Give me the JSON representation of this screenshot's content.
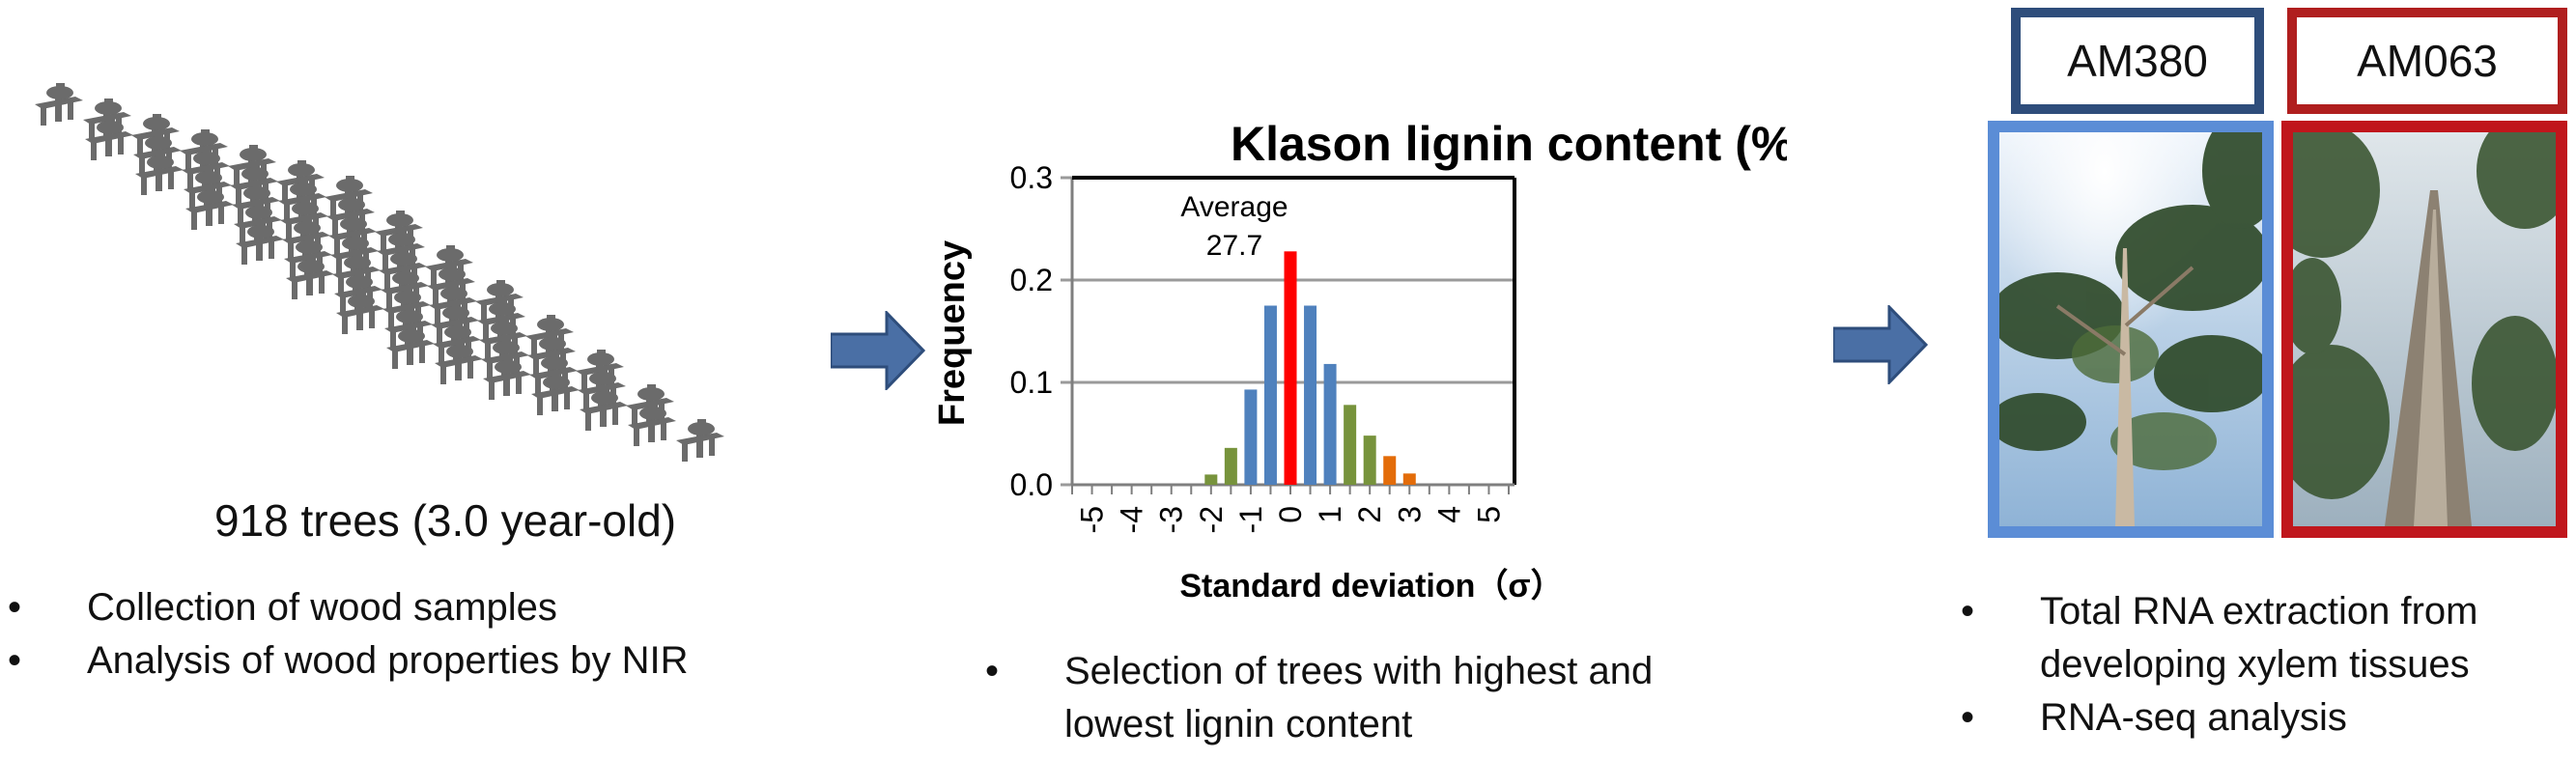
{
  "left": {
    "caption": "918 trees (3.0 year-old)",
    "bullets": [
      "Collection of wood samples",
      "Analysis of wood properties by NIR"
    ]
  },
  "middle": {
    "bullets_line1": "Selection of trees with highest and",
    "bullets_line2": "lowest  lignin content"
  },
  "right": {
    "labels": [
      "AM380",
      "AM063"
    ],
    "bullets_line1": "Total RNA extraction from",
    "bullets_line2": "developing xylem tissues",
    "bullets_2": "RNA-seq analysis"
  },
  "colors": {
    "arrow": "#4a6fa5",
    "box_blue": "#2e4d7b",
    "box_red": "#b01e1e",
    "photo_border_blue": "#5b8dd6",
    "photo_border_red": "#c0161c",
    "tree_gray": "#6b6b6b"
  },
  "chart_data": {
    "type": "bar",
    "title": "Klason lignin content (%)",
    "xlabel": "Standard deviation（σ）",
    "ylabel": "Frequency",
    "ylim": [
      0,
      0.3
    ],
    "yticks": [
      "0.0",
      "0.1",
      "0.2",
      "0.3"
    ],
    "xticks": [
      "-5",
      "-4",
      "-3",
      "-2",
      "-1",
      "0",
      "1",
      "2",
      "3",
      "4",
      "5"
    ],
    "annotation": [
      "Average",
      "27.7"
    ],
    "grid": true,
    "bars": [
      {
        "x": -2.0,
        "value": 0.01,
        "color": "#77933c"
      },
      {
        "x": -1.5,
        "value": 0.036,
        "color": "#77933c"
      },
      {
        "x": -1.0,
        "value": 0.093,
        "color": "#4f81bd"
      },
      {
        "x": -0.5,
        "value": 0.175,
        "color": "#4f81bd"
      },
      {
        "x": 0.0,
        "value": 0.228,
        "color": "#ff0000"
      },
      {
        "x": 0.5,
        "value": 0.175,
        "color": "#4f81bd"
      },
      {
        "x": 1.0,
        "value": 0.118,
        "color": "#4f81bd"
      },
      {
        "x": 1.5,
        "value": 0.078,
        "color": "#77933c"
      },
      {
        "x": 2.0,
        "value": 0.048,
        "color": "#77933c"
      },
      {
        "x": 2.5,
        "value": 0.028,
        "color": "#e36c09"
      },
      {
        "x": 3.0,
        "value": 0.011,
        "color": "#e36c09"
      }
    ]
  }
}
